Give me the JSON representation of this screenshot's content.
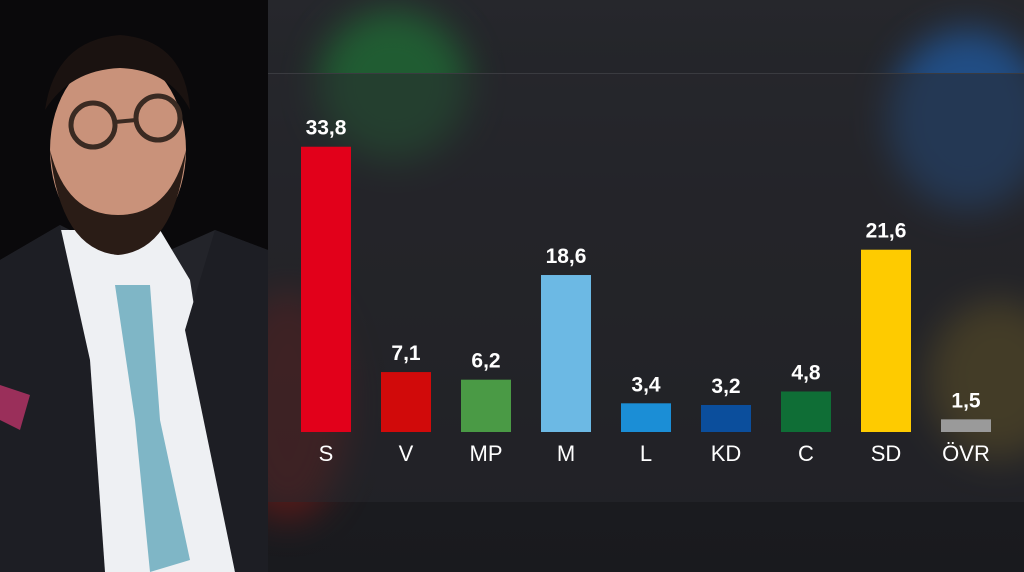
{
  "chart_data": {
    "type": "bar",
    "categories": [
      "S",
      "V",
      "MP",
      "M",
      "L",
      "KD",
      "C",
      "SD",
      "ÖVR"
    ],
    "values": [
      33.8,
      7.1,
      6.2,
      18.6,
      3.4,
      3.2,
      4.8,
      21.6,
      1.5
    ],
    "value_labels": [
      "33,8",
      "7,1",
      "6,2",
      "18,6",
      "3,4",
      "3,2",
      "4,8",
      "21,6",
      "1,5"
    ],
    "colors": [
      "#e2001a",
      "#d10a0a",
      "#4a9a45",
      "#6cb9e4",
      "#1b8ed6",
      "#0b4e9c",
      "#0f6e36",
      "#fecb00",
      "#9a9a9a"
    ],
    "title": "",
    "xlabel": "",
    "ylabel": "",
    "ylim": [
      0,
      35
    ],
    "grid": false,
    "legend": "none"
  }
}
